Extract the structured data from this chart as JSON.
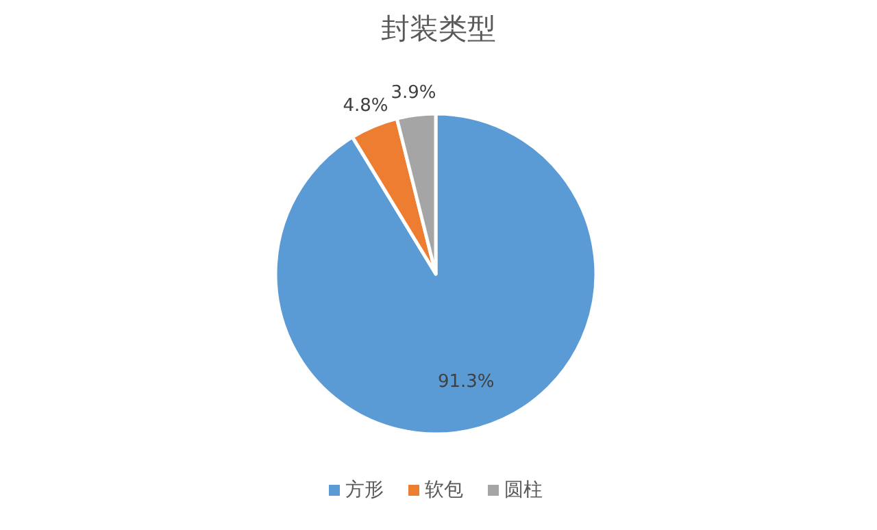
{
  "chart_data": {
    "type": "pie",
    "title": "封装类型",
    "categories": [
      "方形",
      "软包",
      "圆柱"
    ],
    "values": [
      91.3,
      4.8,
      3.9
    ],
    "colors": [
      "#5b9bd5",
      "#ed7d31",
      "#a5a5a5"
    ],
    "value_labels": [
      "91.3%",
      "4.8%",
      "3.9%"
    ],
    "legend": "bottom"
  }
}
